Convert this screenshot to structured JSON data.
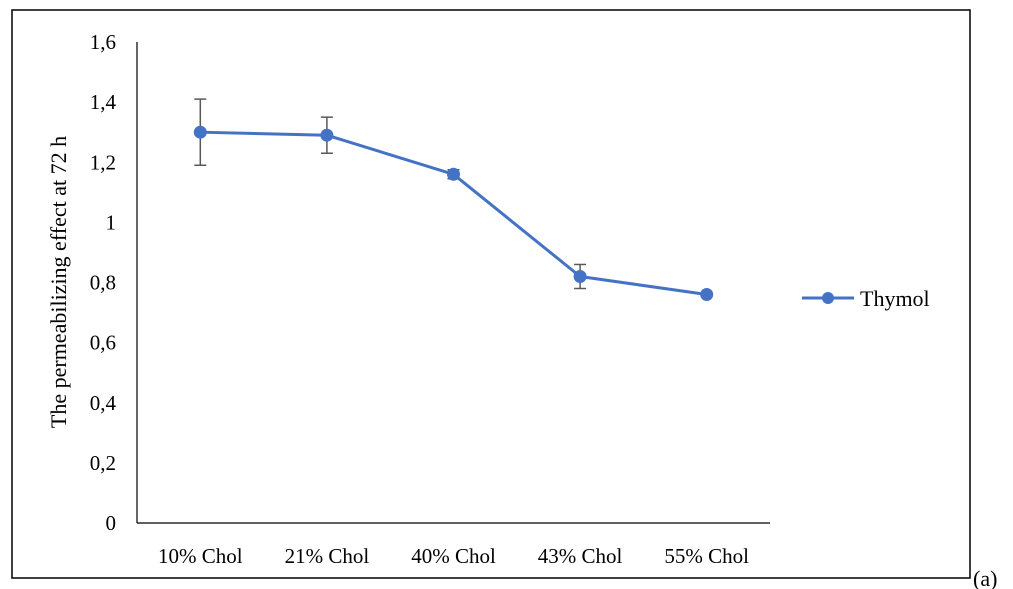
{
  "chart_data": {
    "type": "line",
    "categories": [
      "10% Chol",
      "21% Chol",
      "40% Chol",
      "43% Chol",
      "55% Chol"
    ],
    "series": [
      {
        "name": "Thymol",
        "values": [
          1.3,
          1.29,
          1.16,
          0.82,
          0.76
        ],
        "error": [
          0.11,
          0.06,
          0.015,
          0.04,
          0.0
        ],
        "color": "#4472C4"
      }
    ],
    "ylabel": "The permeabilizing effect at 72 h",
    "ylim": [
      0,
      1.6
    ],
    "yticks": [
      {
        "value": 0,
        "label": "0"
      },
      {
        "value": 0.2,
        "label": "0,2"
      },
      {
        "value": 0.4,
        "label": "0,4"
      },
      {
        "value": 0.6,
        "label": "0,6"
      },
      {
        "value": 0.8,
        "label": "0,8"
      },
      {
        "value": 1.0,
        "label": "1"
      },
      {
        "value": 1.2,
        "label": "1,2"
      },
      {
        "value": 1.4,
        "label": "1,4"
      },
      {
        "value": 1.6,
        "label": "1,6"
      }
    ],
    "grid": false,
    "legend_position": "right",
    "error_bar_color": "#595959"
  },
  "panel_label": "(a)"
}
